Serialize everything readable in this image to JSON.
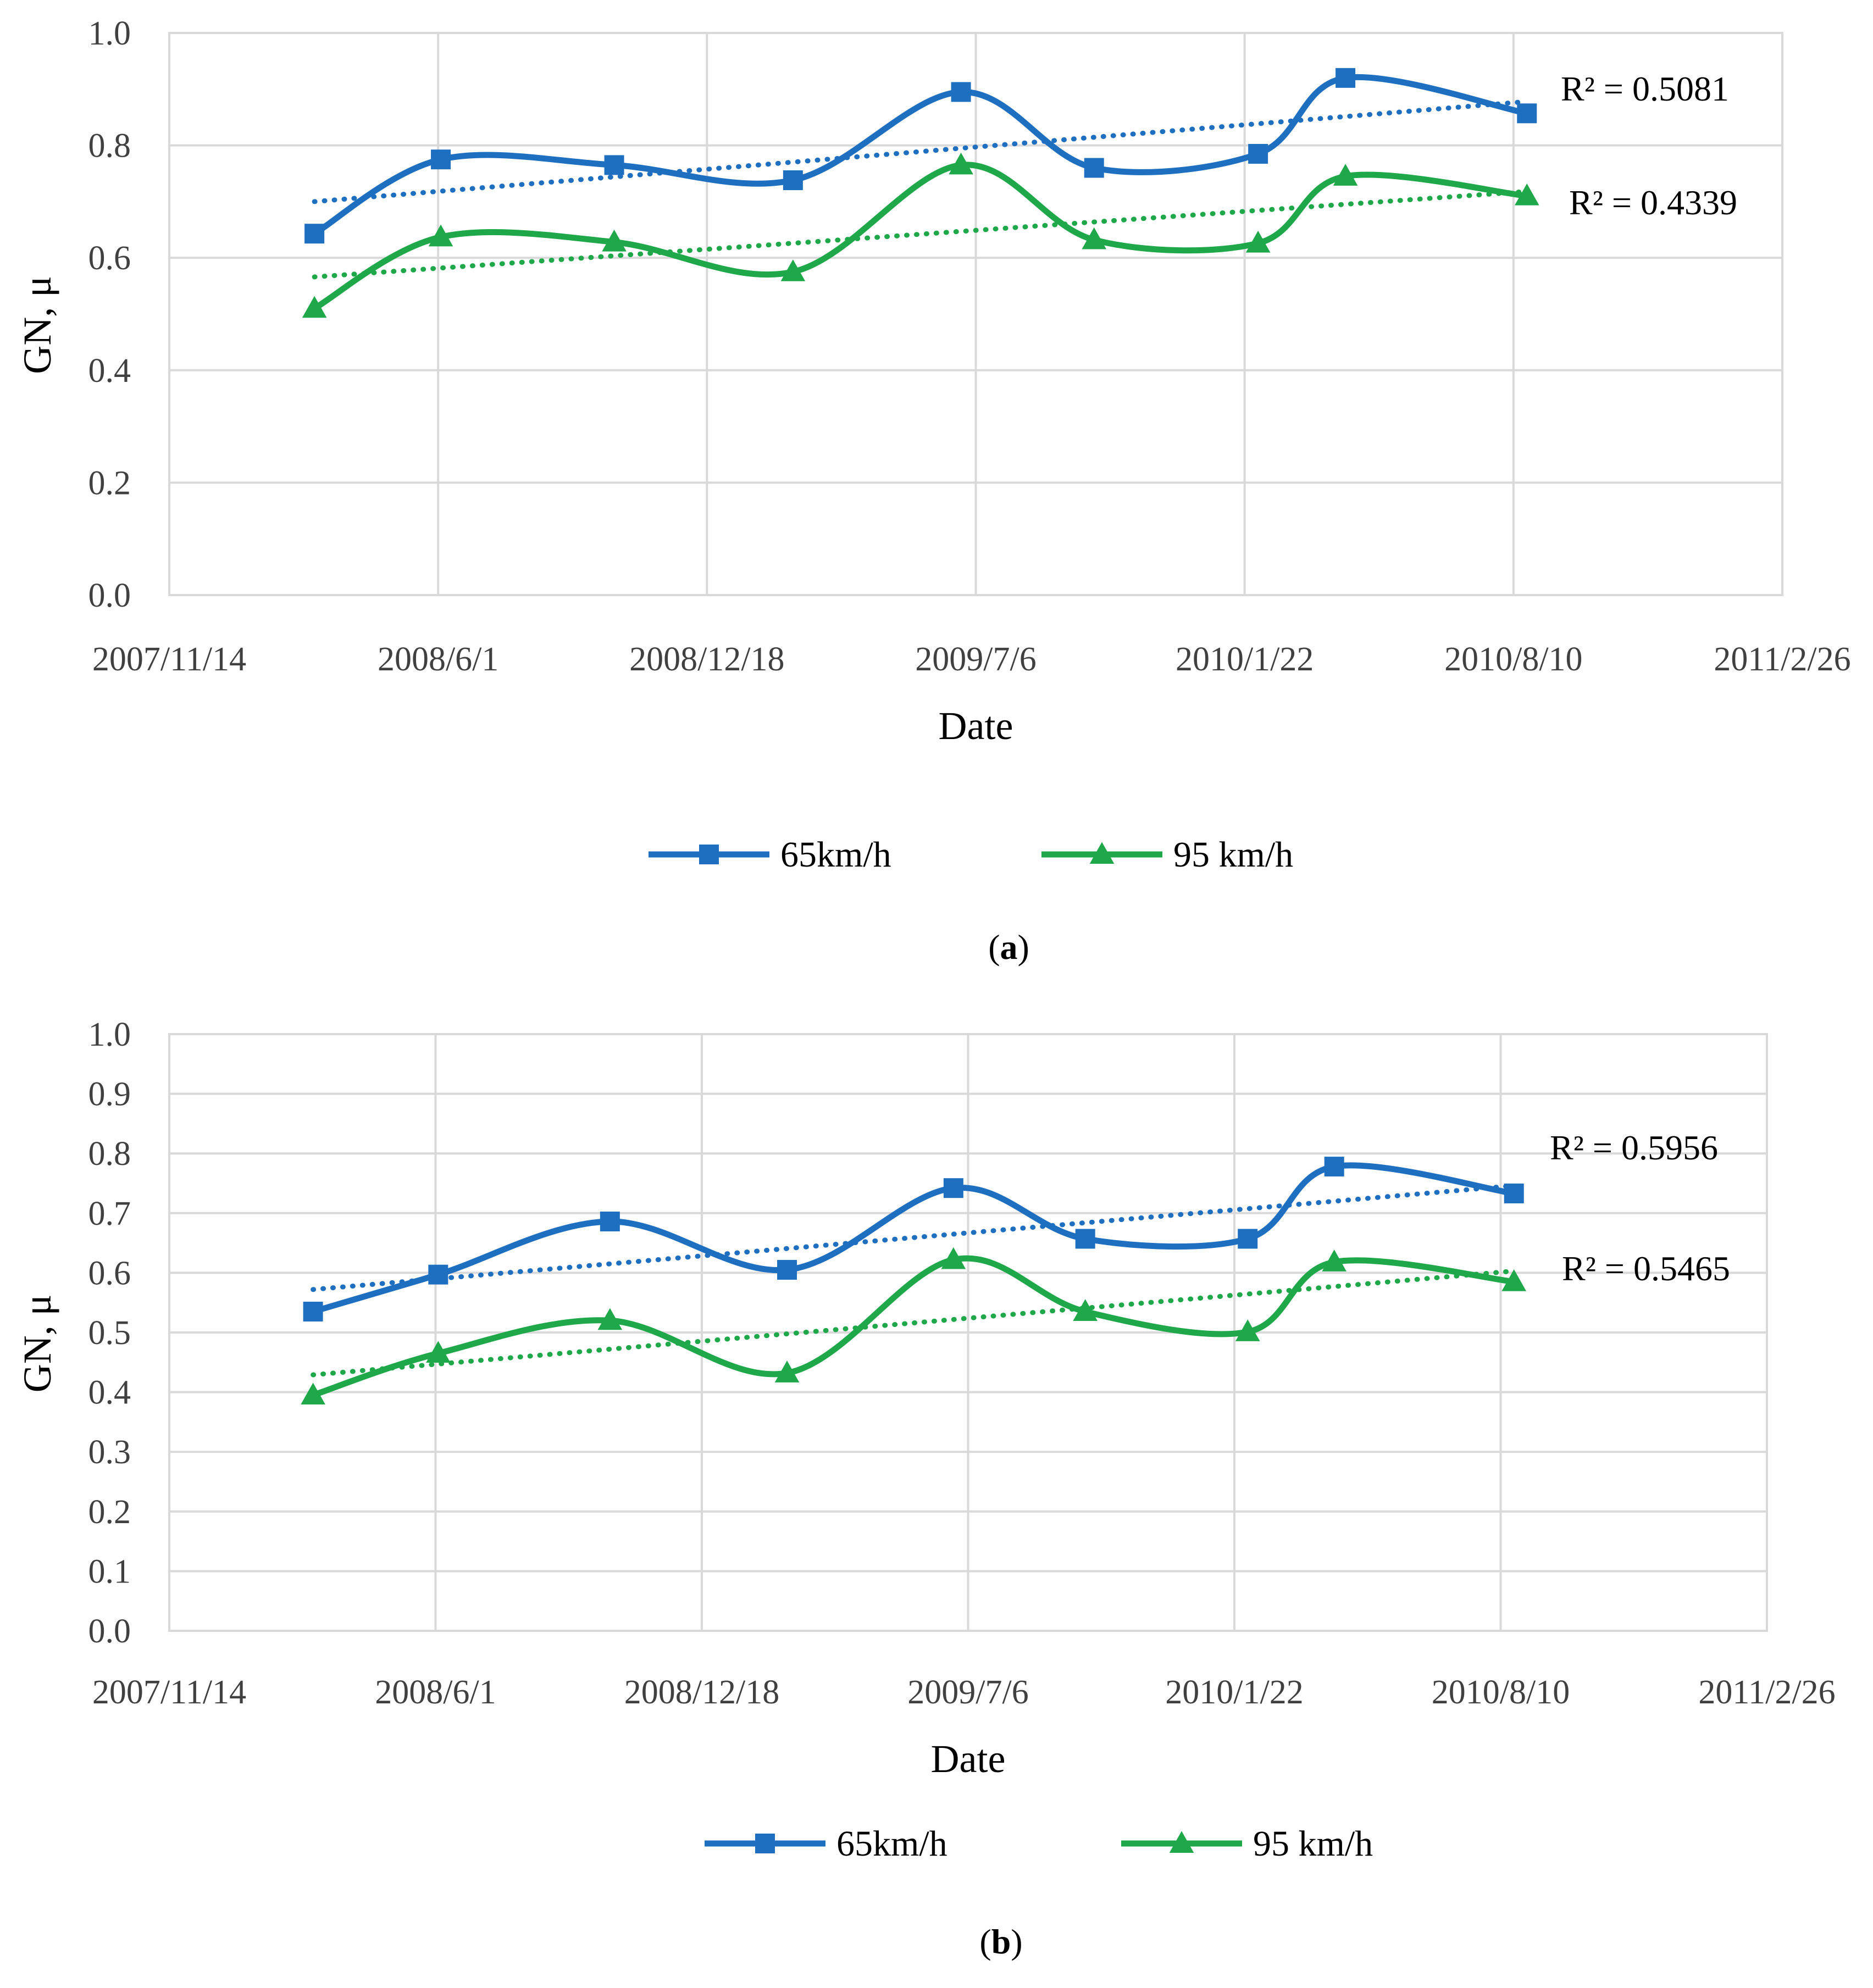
{
  "chart_data": [
    {
      "type": "line",
      "caption": "a",
      "xlabel": "Date",
      "ylabel": "GN, μ",
      "ylim": [
        0,
        1.0
      ],
      "y_ticks": [
        "0.0",
        "0.2",
        "0.4",
        "0.6",
        "0.8",
        "1.0"
      ],
      "x_ticks": [
        "2007/11/14",
        "2008/6/1",
        "2008/12/18",
        "2009/7/6",
        "2010/1/22",
        "2010/8/10",
        "2011/2/26"
      ],
      "x_range": [
        "2007/11/14",
        "2011/2/26"
      ],
      "grid": true,
      "legend": "bottom-center",
      "x_dates": [
        "2008/3/1",
        "2008/6/3",
        "2008/10/10",
        "2009/2/20",
        "2009/6/25",
        "2009/10/2",
        "2010/2/1",
        "2010/4/7",
        "2010/8/20"
      ],
      "series": [
        {
          "name": "65km/h",
          "color": "#1f6fc1",
          "marker": "square",
          "values": [
            0.643,
            0.775,
            0.765,
            0.738,
            0.895,
            0.76,
            0.785,
            0.92,
            0.857
          ],
          "trend": {
            "r2_label": "R² = 0.5081",
            "start": 0.7,
            "end": 0.878
          }
        },
        {
          "name": "95 km/h",
          "color": "#1fa84a",
          "marker": "triangle",
          "values": [
            0.51,
            0.637,
            0.628,
            0.575,
            0.765,
            0.632,
            0.626,
            0.745,
            0.71
          ],
          "trend": {
            "r2_label": "R² = 0.4339",
            "start": 0.566,
            "end": 0.718
          }
        }
      ]
    },
    {
      "type": "line",
      "caption": "b",
      "xlabel": "Date",
      "ylabel": "GN, μ",
      "ylim": [
        0,
        1.0
      ],
      "y_ticks": [
        "0.0",
        "0.1",
        "0.2",
        "0.3",
        "0.4",
        "0.5",
        "0.6",
        "0.7",
        "0.8",
        "0.9",
        "1.0"
      ],
      "x_ticks": [
        "2007/11/14",
        "2008/6/1",
        "2008/12/18",
        "2009/7/6",
        "2010/1/22",
        "2010/8/10",
        "2011/2/26"
      ],
      "x_range": [
        "2007/11/14",
        "2011/2/26"
      ],
      "grid": true,
      "legend": "bottom-center",
      "x_dates": [
        "2008/3/1",
        "2008/6/3",
        "2008/10/10",
        "2009/2/20",
        "2009/6/25",
        "2009/10/2",
        "2010/2/1",
        "2010/4/7",
        "2010/8/20"
      ],
      "series": [
        {
          "name": "65km/h",
          "color": "#1f6fc1",
          "marker": "square",
          "values": [
            0.535,
            0.597,
            0.686,
            0.605,
            0.742,
            0.657,
            0.657,
            0.778,
            0.733
          ],
          "trend": {
            "r2_label": "R² = 0.5956",
            "start": 0.572,
            "end": 0.746
          }
        },
        {
          "name": "95 km/h",
          "color": "#1fa84a",
          "marker": "triangle",
          "values": [
            0.395,
            0.465,
            0.52,
            0.432,
            0.622,
            0.535,
            0.501,
            0.618,
            0.585
          ],
          "trend": {
            "r2_label": "R² = 0.5465",
            "start": 0.429,
            "end": 0.603
          }
        }
      ]
    }
  ]
}
